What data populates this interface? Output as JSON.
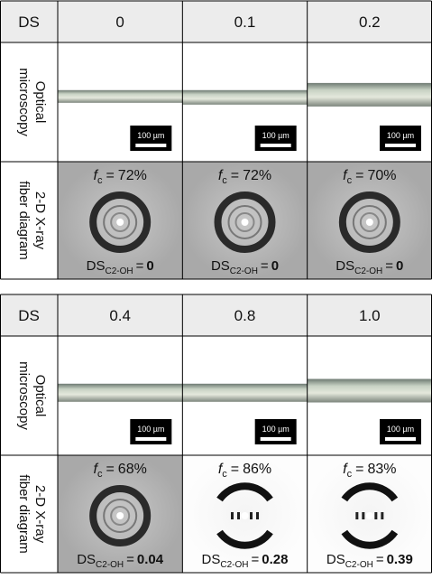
{
  "row_labels": {
    "ds": "DS",
    "optical": [
      "Optical",
      "microscopy"
    ],
    "xray": [
      "2-D X-ray",
      "fiber diagram"
    ]
  },
  "scale_bar": "100 µm",
  "fc_symbol": {
    "main": "f",
    "sub": "c"
  },
  "ds_symbol": {
    "main": "DS",
    "sub": "C2-OH"
  },
  "equals": "=",
  "panels": [
    {
      "columns": [
        {
          "ds": "0",
          "fc": "72%",
          "ds_c2oh": "0"
        },
        {
          "ds": "0.1",
          "fc": "72%",
          "ds_c2oh": "0"
        },
        {
          "ds": "0.2",
          "fc": "70%",
          "ds_c2oh": "0"
        }
      ]
    },
    {
      "columns": [
        {
          "ds": "0.4",
          "fc": "68%",
          "ds_c2oh": "0.04"
        },
        {
          "ds": "0.8",
          "fc": "86%",
          "ds_c2oh": "0.28"
        },
        {
          "ds": "1.0",
          "fc": "83%",
          "ds_c2oh": "0.39"
        }
      ]
    }
  ]
}
